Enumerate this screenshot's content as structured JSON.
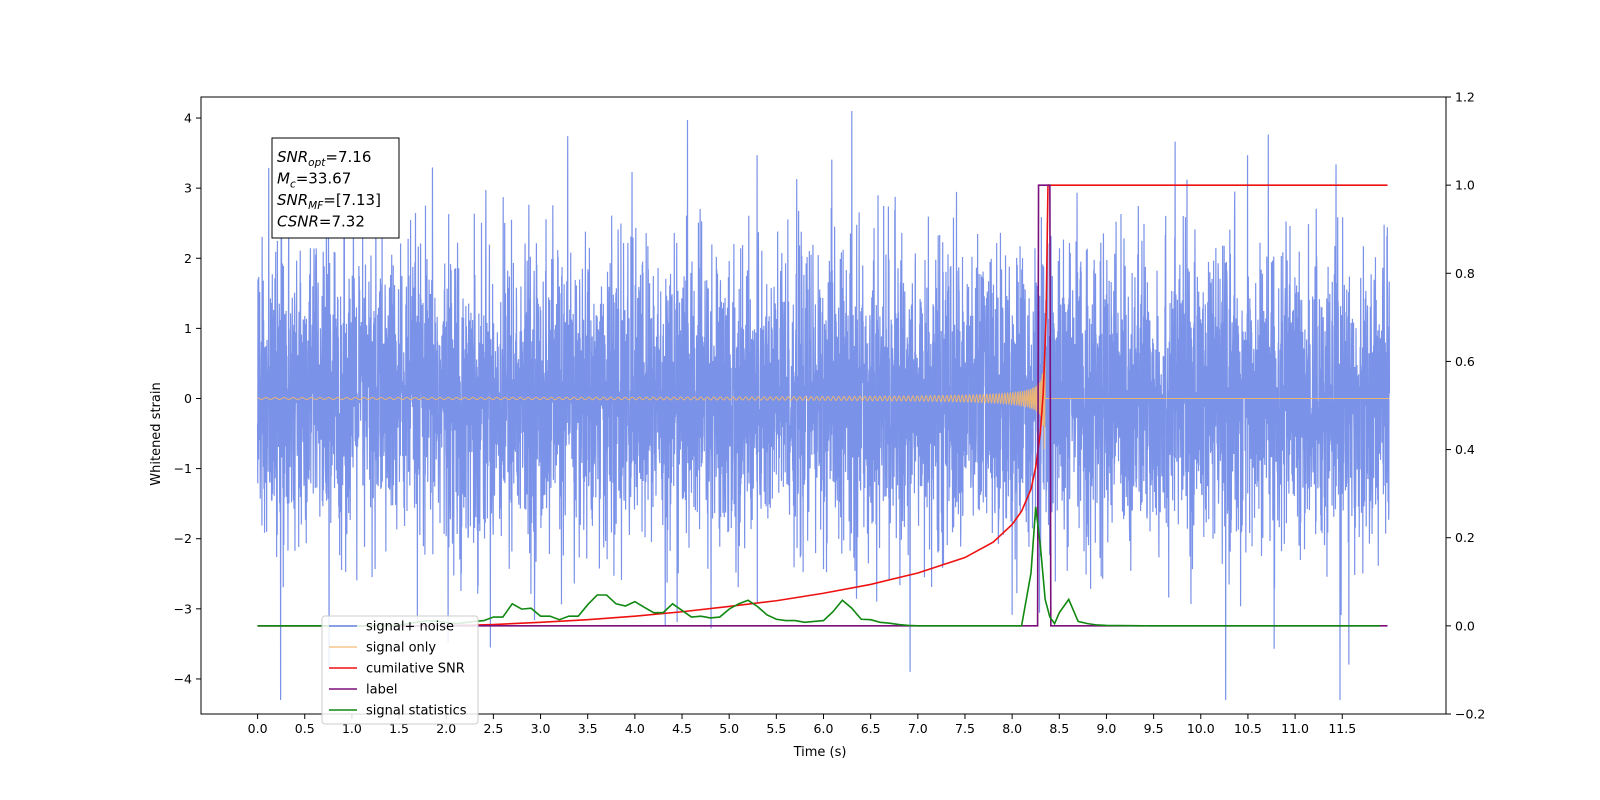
{
  "chart_data": {
    "type": "line",
    "xlabel": "Time (s)",
    "ylabel": "Whitened strain",
    "xlim": [
      -0.6,
      12.6
    ],
    "ylim": [
      -4.5,
      4.3
    ],
    "y2lim": [
      -0.2,
      1.2
    ],
    "xticks": [
      0.0,
      0.5,
      1.0,
      1.5,
      2.0,
      2.5,
      3.0,
      3.5,
      4.0,
      4.5,
      5.0,
      5.5,
      6.0,
      6.5,
      7.0,
      7.5,
      8.0,
      8.5,
      9.0,
      9.5,
      10.0,
      10.5,
      11.0,
      11.5
    ],
    "xtick_labels": [
      "0.0",
      "0.5",
      "1.0",
      "1.5",
      "2.0",
      "2.5",
      "3.0",
      "3.5",
      "4.0",
      "4.5",
      "5.0",
      "5.5",
      "6.0",
      "6.5",
      "7.0",
      "7.5",
      "8.0",
      "8.5",
      "9.0",
      "9.5",
      "10.0",
      "10.5",
      "11.0",
      "11.5"
    ],
    "yticks": [
      -4,
      -3,
      -2,
      -1,
      0,
      1,
      2,
      3,
      4
    ],
    "ytick_labels": [
      "−4",
      "−3",
      "−2",
      "−1",
      "0",
      "1",
      "2",
      "3",
      "4"
    ],
    "y2ticks": [
      -0.2,
      0.0,
      0.2,
      0.4,
      0.6,
      0.8,
      1.0,
      1.2
    ],
    "y2tick_labels": [
      "−0.2",
      "0.0",
      "0.2",
      "0.4",
      "0.6",
      "0.8",
      "1.0",
      "1.2"
    ],
    "grid": false,
    "legend_position": "lower-left",
    "noise": {
      "t0": 0.0,
      "t1": 12.0,
      "sigma": 1.05,
      "merger_time": 8.35
    },
    "series": [
      {
        "name": "signal+ noise",
        "color": "#6b86e5",
        "axis": "left",
        "kind": "noise"
      },
      {
        "name": "signal only",
        "color": "#f5b86b",
        "axis": "left",
        "kind": "chirp"
      },
      {
        "name": "cumilative SNR",
        "color": "#ee1111",
        "axis": "right",
        "kind": "line",
        "x": [
          0.0,
          1.0,
          2.0,
          2.5,
          3.0,
          3.5,
          4.0,
          4.5,
          5.0,
          5.5,
          6.0,
          6.5,
          7.0,
          7.5,
          7.8,
          8.0,
          8.1,
          8.2,
          8.25,
          8.3,
          8.33,
          8.36,
          8.37,
          8.38,
          9.0,
          10.0,
          11.0,
          11.98
        ],
        "y": [
          0.0,
          0.0,
          0.0,
          0.003,
          0.008,
          0.014,
          0.022,
          0.032,
          0.044,
          0.057,
          0.074,
          0.094,
          0.12,
          0.155,
          0.19,
          0.23,
          0.26,
          0.31,
          0.36,
          0.44,
          0.53,
          0.7,
          0.85,
          1.0,
          1.0,
          1.0,
          1.0,
          1.0
        ]
      },
      {
        "name": "label",
        "color": "#7b0f7b",
        "axis": "right",
        "kind": "line",
        "x": [
          0.0,
          8.27,
          8.28,
          8.4,
          8.41,
          11.98
        ],
        "y": [
          0.0,
          0.0,
          1.0,
          1.0,
          0.0,
          0.0
        ]
      },
      {
        "name": "signal statistics",
        "color": "#118811",
        "axis": "right",
        "kind": "line",
        "x": [
          0.0,
          1.4,
          1.6,
          1.8,
          2.0,
          2.1,
          2.3,
          2.4,
          2.5,
          2.6,
          2.7,
          2.8,
          2.9,
          3.0,
          3.1,
          3.2,
          3.3,
          3.4,
          3.5,
          3.6,
          3.7,
          3.8,
          3.9,
          4.0,
          4.1,
          4.2,
          4.3,
          4.4,
          4.5,
          4.6,
          4.7,
          4.8,
          4.9,
          5.0,
          5.1,
          5.2,
          5.3,
          5.4,
          5.5,
          5.6,
          5.7,
          5.8,
          5.9,
          6.0,
          6.1,
          6.2,
          6.3,
          6.4,
          6.5,
          6.6,
          6.7,
          6.8,
          6.9,
          7.0,
          8.1,
          8.2,
          8.25,
          8.3,
          8.35,
          8.4,
          8.45,
          8.5,
          8.6,
          8.65,
          8.7,
          8.8,
          8.9,
          9.0,
          9.5,
          11.9
        ],
        "y": [
          0.0,
          0.0,
          0.005,
          0.012,
          0.008,
          0.005,
          0.01,
          0.012,
          0.02,
          0.02,
          0.05,
          0.038,
          0.04,
          0.022,
          0.022,
          0.014,
          0.022,
          0.022,
          0.048,
          0.07,
          0.07,
          0.05,
          0.045,
          0.055,
          0.042,
          0.03,
          0.03,
          0.05,
          0.035,
          0.02,
          0.022,
          0.018,
          0.02,
          0.038,
          0.05,
          0.058,
          0.044,
          0.025,
          0.015,
          0.012,
          0.012,
          0.008,
          0.01,
          0.012,
          0.032,
          0.058,
          0.04,
          0.015,
          0.014,
          0.008,
          0.006,
          0.003,
          0.001,
          0.0,
          0.0,
          0.12,
          0.27,
          0.18,
          0.06,
          0.02,
          0.005,
          0.03,
          0.06,
          0.035,
          0.01,
          0.005,
          0.002,
          0.001,
          0.0,
          0.0
        ]
      }
    ]
  },
  "annotation": [
    {
      "main": "SNR",
      "sub": "opt",
      "rest": "=7.16"
    },
    {
      "main": "M",
      "sub": "c",
      "rest": "=33.67"
    },
    {
      "main": "SNR",
      "sub": "MF",
      "rest": "=[7.13]"
    },
    {
      "main": "CSNR",
      "sub": "",
      "rest": "=7.32"
    }
  ]
}
